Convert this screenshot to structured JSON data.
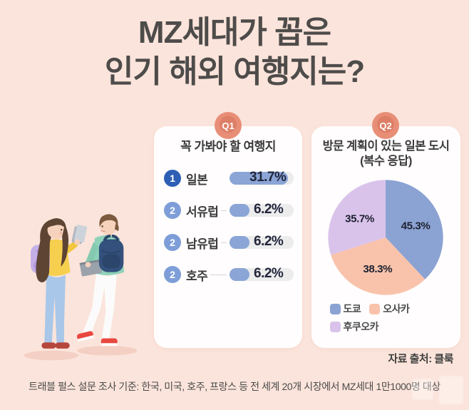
{
  "page": {
    "background_color": "#fbe4db",
    "title_line1": "MZ세대가 꼽은",
    "title_line2": "인기 해외 여행지는?",
    "source_note": "자료 출처: 클룩",
    "footnote": "트래블 펄스 설문 조사 기준: 한국, 미국, 호주, 프랑스 등 전 세계 20개 시장에서 MZ세대 1만1000명 대상"
  },
  "q1": {
    "badge": "Q1",
    "title": "꼭 가봐야 할 여행지"
  },
  "q2": {
    "badge": "Q2",
    "title_line1": "방문 계획이 있는 일본 도시",
    "title_line2": "(복수 응답)"
  },
  "illustration": "two-young-travelers-with-backpacks",
  "chart_data": [
    {
      "type": "bar",
      "title": "꼭 가봐야 할 여행지",
      "orientation": "horizontal",
      "categories": [
        "일본",
        "서유럽",
        "남유럽",
        "호주"
      ],
      "values": [
        31.7,
        6.2,
        6.2,
        6.2
      ],
      "value_labels": [
        "31.7%",
        "6.2%",
        "6.2%",
        "6.2%"
      ],
      "ranks": [
        1,
        2,
        2,
        2
      ],
      "bar_color": "#8ba5d7",
      "track_color": "#ececec",
      "rank1_color": "#2d5fb4",
      "rank2_color": "#7e9ed8",
      "xlim": [
        0,
        35
      ]
    },
    {
      "type": "pie",
      "title": "방문 계획이 있는 일본 도시 (복수 응답)",
      "labels": [
        "도쿄",
        "오사카",
        "후쿠오카"
      ],
      "values": [
        45.3,
        38.3,
        35.7
      ],
      "value_labels": [
        "45.3%",
        "38.3%",
        "35.7%"
      ],
      "colors": [
        "#8ba3d3",
        "#f9c3ab",
        "#d9c3eb"
      ],
      "start_angle_deg": 0,
      "direction": "clockwise",
      "legend_position": "bottom",
      "note": "multiple responses, values sum over 100%"
    }
  ]
}
